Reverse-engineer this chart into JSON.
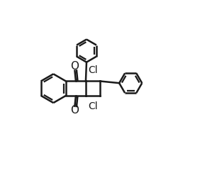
{
  "background_color": "#ffffff",
  "line_color": "#1a1a1a",
  "line_width": 1.8,
  "font_size": 10,
  "figsize": [
    3.06,
    2.44
  ],
  "dpi": 100,
  "xlim": [
    -2.1,
    2.9
  ],
  "ylim": [
    -2.1,
    2.4
  ]
}
